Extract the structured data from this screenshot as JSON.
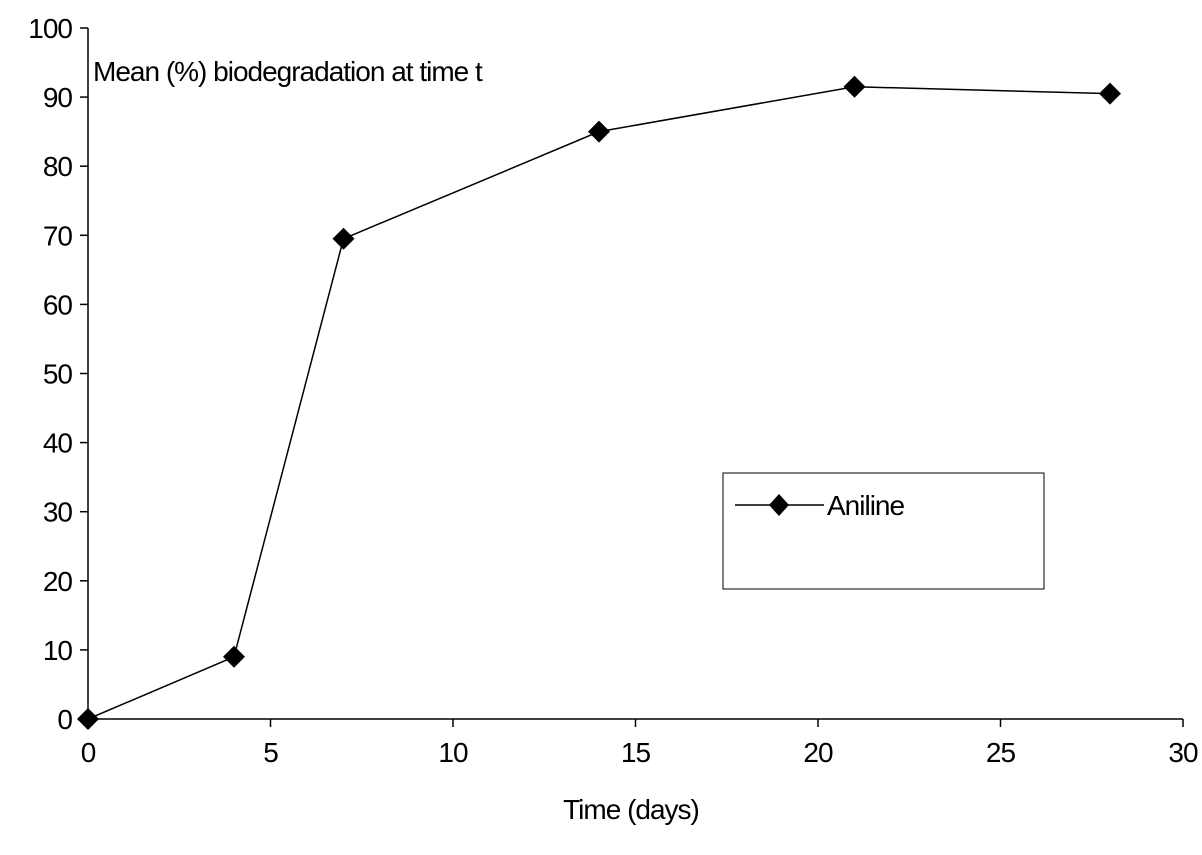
{
  "chart_data": {
    "type": "line",
    "title": "",
    "xlabel": "Time (days)",
    "ylabel": "Mean (%) biodegradation  at time t",
    "xlim": [
      0,
      30
    ],
    "ylim": [
      0,
      100
    ],
    "x_ticks": [
      0,
      5,
      10,
      15,
      20,
      25,
      30
    ],
    "y_ticks": [
      0,
      10,
      20,
      30,
      40,
      50,
      60,
      70,
      80,
      90,
      100
    ],
    "x_tick_labels": [
      "0",
      "5",
      "10",
      "15",
      "20",
      "25",
      "30"
    ],
    "y_tick_labels": [
      "0",
      "10",
      "20",
      "30",
      "40",
      "50",
      "60",
      "70",
      "80",
      "90",
      "100"
    ],
    "grid": false,
    "legend": {
      "placement": "center-right",
      "entries": [
        "Aniline"
      ]
    },
    "series": [
      {
        "name": "Aniline",
        "marker": "diamond",
        "color": "#000000",
        "x": [
          0,
          4,
          7,
          14,
          21,
          28
        ],
        "y": [
          0,
          9,
          69.5,
          85,
          91.5,
          90.5
        ]
      }
    ]
  }
}
